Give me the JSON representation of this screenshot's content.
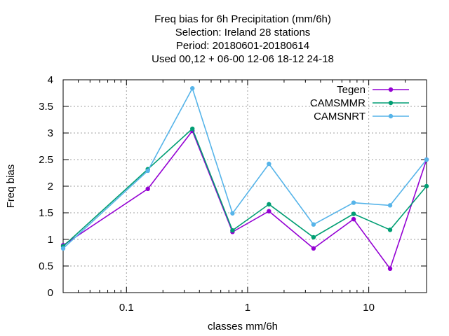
{
  "chart_data": {
    "type": "line",
    "title_lines": [
      "Freq bias  for 6h Precipitation (mm/6h)",
      "Selection: Ireland      28 stations",
      "Period: 20180601-20180614",
      "Used  00,12  + 06-00 12-06 18-12 24-18"
    ],
    "xlabel": "classes mm/6h",
    "ylabel": "Freq bias",
    "xscale": "log",
    "xlim": [
      0.03,
      30
    ],
    "ylim": [
      0,
      4
    ],
    "x_tick_labels": [
      "0.1",
      "1",
      "10"
    ],
    "y_tick_labels": [
      "0",
      "0.5",
      "1",
      "1.5",
      "2",
      "2.5",
      "3",
      "3.5",
      "4"
    ],
    "grid": true,
    "legend_position": "top-right",
    "x": [
      0.03,
      0.15,
      0.35,
      0.75,
      1.5,
      3.5,
      7.5,
      15,
      30
    ],
    "series": [
      {
        "name": "Tegen",
        "color": "#9400d3",
        "values": [
          0.89,
          1.95,
          3.04,
          1.14,
          1.53,
          0.83,
          1.38,
          0.45,
          2.5
        ]
      },
      {
        "name": "CAMSMMR",
        "color": "#009e73",
        "values": [
          0.87,
          2.32,
          3.08,
          1.17,
          1.66,
          1.04,
          1.48,
          1.18,
          2.0
        ]
      },
      {
        "name": "CAMSNRT",
        "color": "#56b4e9",
        "values": [
          0.83,
          2.29,
          3.84,
          1.49,
          2.42,
          1.28,
          1.69,
          1.64,
          2.5
        ]
      }
    ]
  }
}
